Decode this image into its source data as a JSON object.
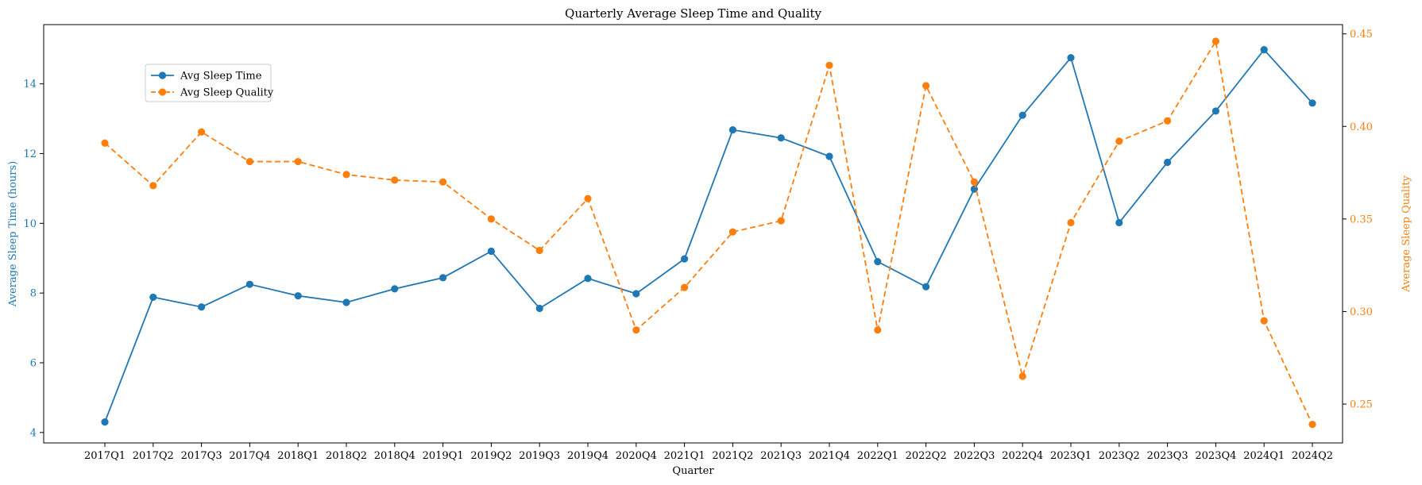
{
  "chart_data": {
    "type": "line",
    "title": "Quarterly Average Sleep Time and Quality",
    "xlabel": "Quarter",
    "ylabel_left": "Average Sleep Time (hours)",
    "ylabel_right": "Average Sleep Quality",
    "categories": [
      "2017Q1",
      "2017Q2",
      "2017Q3",
      "2017Q4",
      "2018Q1",
      "2018Q2",
      "2018Q4",
      "2019Q1",
      "2019Q2",
      "2019Q3",
      "2019Q4",
      "2020Q4",
      "2021Q1",
      "2021Q2",
      "2021Q3",
      "2021Q4",
      "2022Q1",
      "2022Q2",
      "2022Q3",
      "2022Q4",
      "2023Q1",
      "2023Q2",
      "2023Q3",
      "2023Q4",
      "2024Q1",
      "2024Q2"
    ],
    "ylim_left": [
      3.7,
      15.7
    ],
    "yticks_left": [
      4,
      6,
      8,
      10,
      12,
      14
    ],
    "ylim_right": [
      0.229,
      0.455
    ],
    "yticks_right": [
      0.25,
      0.3,
      0.35,
      0.4,
      0.45
    ],
    "ytick_labels_right": [
      "0.25",
      "0.30",
      "0.35",
      "0.40",
      "0.45"
    ],
    "legend_position": "upper-left",
    "grid": false,
    "series": [
      {
        "name": "Avg Sleep Time",
        "axis": "left",
        "color": "#1f77b4",
        "linestyle": "solid",
        "marker": "circle",
        "values": [
          4.3,
          7.88,
          7.6,
          8.25,
          7.92,
          7.73,
          8.12,
          8.44,
          9.2,
          7.56,
          8.42,
          7.98,
          8.98,
          12.68,
          12.45,
          11.92,
          8.9,
          8.18,
          10.98,
          13.1,
          14.75,
          10.02,
          11.75,
          13.22,
          14.98,
          13.45
        ]
      },
      {
        "name": "Avg Sleep Quality",
        "axis": "right",
        "color": "#ff7f0e",
        "linestyle": "dashed",
        "marker": "circle",
        "values": [
          0.391,
          0.368,
          0.397,
          0.381,
          0.381,
          0.374,
          0.371,
          0.37,
          0.35,
          0.333,
          0.361,
          0.29,
          0.313,
          0.343,
          0.349,
          0.433,
          0.29,
          0.422,
          0.37,
          0.265,
          0.348,
          0.392,
          0.403,
          0.446,
          0.295,
          0.239
        ]
      }
    ]
  }
}
